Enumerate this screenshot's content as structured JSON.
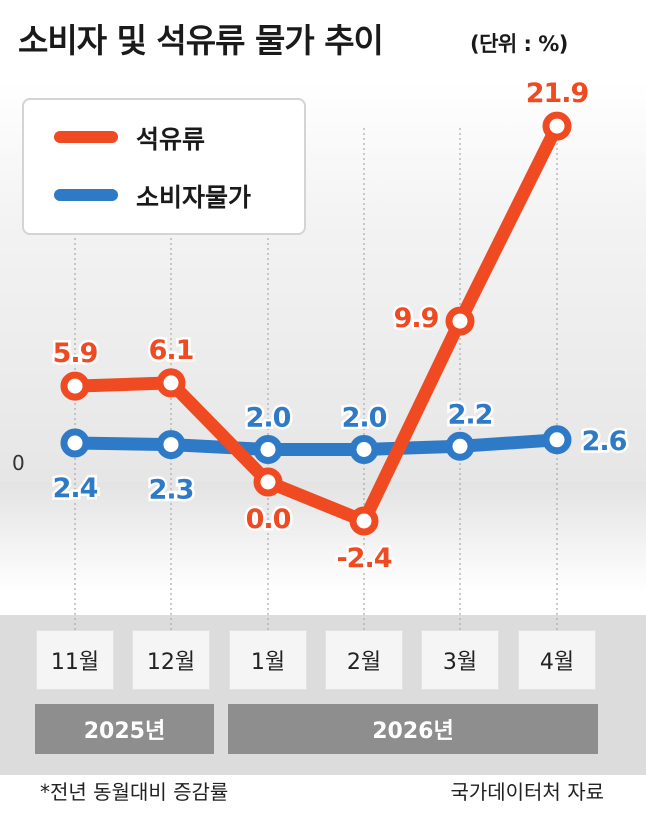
{
  "title": "소비자 및 석유류 물가 추이",
  "unit": "(단위 : %)",
  "footnote": "*전년 동월대비 증감률",
  "source": "국가데이터처 자료",
  "years": [
    "2025년",
    "2026년"
  ],
  "colors": {
    "oil": "#ef4a21",
    "cpi": "#2f7ac6",
    "grid": "#aaaaaa",
    "band": "#e3e3e3"
  },
  "chart_data": {
    "type": "line",
    "categories": [
      "11월",
      "12월",
      "1월",
      "2월",
      "3월",
      "4월"
    ],
    "zero_label": "0",
    "series": [
      {
        "name": "석유류",
        "values": [
          5.9,
          6.1,
          0.0,
          -2.4,
          9.9,
          21.9
        ],
        "labels": [
          "5.9",
          "6.1",
          "0.0",
          "-2.4",
          "9.9",
          "21.9"
        ]
      },
      {
        "name": "소비자물가",
        "values": [
          2.4,
          2.3,
          2.0,
          2.0,
          2.2,
          2.6
        ],
        "labels": [
          "2.4",
          "2.3",
          "2.0",
          "2.0",
          "2.2",
          "2.6"
        ]
      }
    ]
  }
}
